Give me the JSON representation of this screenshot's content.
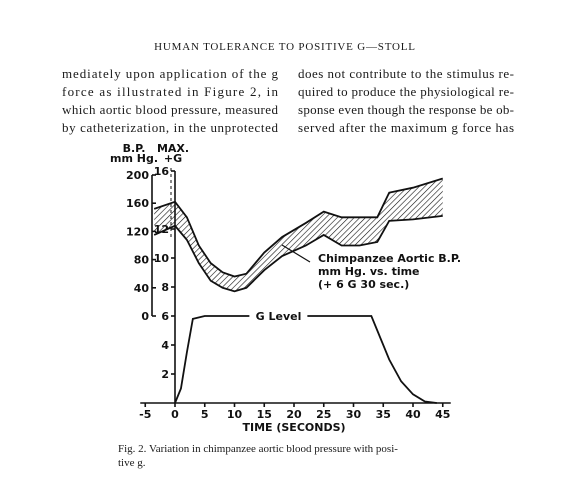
{
  "header": {
    "title": "HUMAN TOLERANCE TO POSITIVE G—STOLL"
  },
  "text_columns": [
    [
      "mediately upon application of the g",
      "force as illustrated in Figure 2, in",
      "which aortic blood pressure, measured",
      "by catheterization, in the unprotected"
    ],
    [
      "does not contribute to the stimulus re-",
      "quired to produce the physiological re-",
      "sponse even though the response be ob-",
      "served after the maximum g force has"
    ]
  ],
  "chart_data": {
    "type": "line",
    "xlabel": "TIME (SECONDS)",
    "ylabel": [
      "MAX.",
      "+G"
    ],
    "y2label": [
      "B.P.",
      "mm Hg."
    ],
    "xlim": [
      -5,
      45
    ],
    "xticks": [
      -5,
      0,
      5,
      10,
      15,
      20,
      25,
      30,
      35,
      40,
      45
    ],
    "ylim": [
      0,
      16
    ],
    "yticks": [
      2,
      4,
      6,
      8,
      10,
      12,
      16
    ],
    "y2lim": [
      0,
      200
    ],
    "y2ticks": [
      0,
      40,
      80,
      120,
      160,
      200
    ],
    "series": [
      {
        "axis": "y2",
        "color": "#111111",
        "x": [
          -3.5,
          0,
          2,
          4,
          6,
          8,
          10,
          12,
          15,
          18,
          22,
          25,
          28,
          31,
          34,
          36,
          40,
          45
        ],
        "values": [
          152,
          162,
          140,
          100,
          75,
          62,
          56,
          60,
          90,
          112,
          132,
          148,
          140,
          140,
          140,
          175,
          182,
          195
        ]
      },
      {
        "axis": "y2",
        "color": "#111111",
        "x": [
          -3.5,
          0,
          2,
          4,
          6,
          8,
          10,
          12,
          15,
          18,
          22,
          25,
          28,
          31,
          34,
          36,
          40,
          45
        ],
        "values": [
          115,
          128,
          108,
          75,
          50,
          40,
          35,
          40,
          65,
          85,
          100,
          115,
          100,
          100,
          105,
          135,
          137,
          142
        ]
      },
      {
        "name": "G Level",
        "color": "#111111",
        "x": [
          0,
          1,
          2,
          3,
          5,
          33,
          34,
          36,
          38,
          40,
          42,
          44
        ],
        "values": [
          0,
          1,
          3.5,
          5.8,
          6,
          6,
          5,
          3,
          1.5,
          0.6,
          0.1,
          0
        ]
      }
    ],
    "annotations": [
      "Chimpanzee  Aortic  B.P.",
      "mm Hg. vs. time",
      "(+ 6 G  30 sec.)"
    ]
  },
  "caption": [
    "Fig. 2.  Variation in chimpanzee aortic blood pressure with posi-",
    "tive g."
  ]
}
